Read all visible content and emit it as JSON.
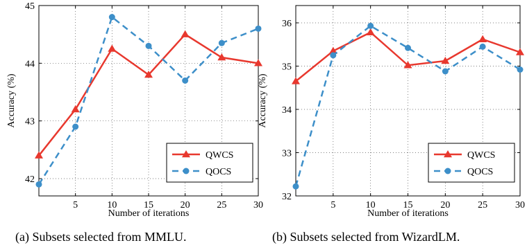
{
  "chart_data": [
    {
      "type": "line",
      "caption": "(a) Subsets selected from MMLU.",
      "xlabel": "Number of iterations",
      "ylabel": "Accuracy (%)",
      "xlim": [
        0,
        30
      ],
      "ylim": [
        41.7,
        45
      ],
      "xticks": [
        5,
        10,
        15,
        20,
        25,
        30
      ],
      "yticks": [
        42,
        43,
        44,
        45
      ],
      "grid": true,
      "legend_position": "bottom-right",
      "series": [
        {
          "name": "QWCS",
          "x": [
            0,
            5,
            10,
            15,
            20,
            25,
            30
          ],
          "values": [
            42.4,
            43.2,
            44.25,
            43.8,
            44.5,
            44.1,
            44.0
          ],
          "color": "#e8382e",
          "marker": "triangle",
          "dash": "solid"
        },
        {
          "name": "QOCS",
          "x": [
            0,
            5,
            10,
            15,
            20,
            25,
            30
          ],
          "values": [
            41.9,
            42.9,
            44.8,
            44.3,
            43.7,
            44.35,
            44.6
          ],
          "color": "#3d8fc9",
          "marker": "circle",
          "dash": "dashed"
        }
      ]
    },
    {
      "type": "line",
      "caption": "(b) Subsets selected from WizardLM.",
      "xlabel": "Number of iterations",
      "ylabel": "Accuracy (%)",
      "xlim": [
        0,
        30
      ],
      "ylim": [
        32,
        36.4
      ],
      "xticks": [
        5,
        10,
        15,
        20,
        25,
        30
      ],
      "yticks": [
        32,
        33,
        34,
        35,
        36
      ],
      "grid": true,
      "legend_position": "bottom-right",
      "series": [
        {
          "name": "QWCS",
          "x": [
            0,
            5,
            10,
            15,
            20,
            25,
            30
          ],
          "values": [
            34.65,
            35.35,
            35.78,
            35.02,
            35.12,
            35.62,
            35.32
          ],
          "color": "#e8382e",
          "marker": "triangle",
          "dash": "solid"
        },
        {
          "name": "QOCS",
          "x": [
            0,
            5,
            10,
            15,
            20,
            25,
            30
          ],
          "values": [
            32.22,
            35.25,
            35.93,
            35.42,
            34.88,
            35.45,
            34.92
          ],
          "color": "#3d8fc9",
          "marker": "circle",
          "dash": "dashed"
        }
      ]
    }
  ]
}
